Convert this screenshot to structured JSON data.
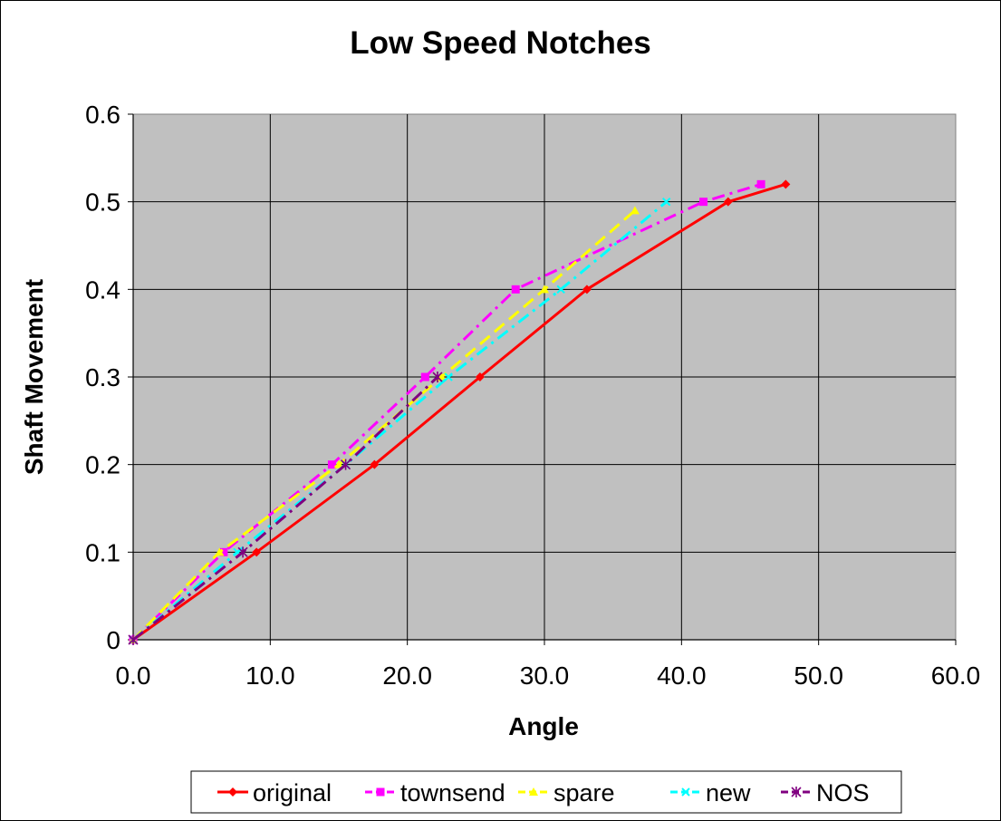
{
  "chart_data": {
    "type": "line",
    "title": "Low Speed Notches",
    "xlabel": "Angle",
    "ylabel": "Shaft Movement",
    "xlim": [
      0,
      60
    ],
    "ylim": [
      0,
      0.6
    ],
    "xticks": [
      0,
      10,
      20,
      30,
      40,
      50,
      60
    ],
    "xtick_labels": [
      "0.0",
      "10.0",
      "20.0",
      "30.0",
      "40.0",
      "50.0",
      "60.0"
    ],
    "yticks": [
      0,
      0.1,
      0.2,
      0.3,
      0.4,
      0.5,
      0.6
    ],
    "ytick_labels": [
      "0",
      "0.1",
      "0.2",
      "0.3",
      "0.4",
      "0.5",
      "0.6"
    ],
    "grid": true,
    "plot_background": "#c0c0c0",
    "legend_position": "bottom",
    "series": [
      {
        "name": "original",
        "color": "#ff0000",
        "marker": "diamond",
        "dash": "solid",
        "x": [
          0,
          9.0,
          17.6,
          25.3,
          33.1,
          43.4,
          47.6
        ],
        "y": [
          0,
          0.1,
          0.2,
          0.3,
          0.4,
          0.5,
          0.52
        ]
      },
      {
        "name": "townsend",
        "color": "#ff00ff",
        "marker": "square",
        "dash": "dashdot",
        "x": [
          0,
          6.6,
          14.5,
          21.3,
          27.9,
          41.6,
          45.8
        ],
        "y": [
          0,
          0.1,
          0.2,
          0.3,
          0.4,
          0.5,
          0.52
        ]
      },
      {
        "name": "spare",
        "color": "#ffff00",
        "marker": "triangle",
        "dash": "dash",
        "x": [
          0,
          6.3,
          15.0,
          22.5,
          30.0,
          36.6
        ],
        "y": [
          0,
          0.1,
          0.2,
          0.3,
          0.4,
          0.49
        ]
      },
      {
        "name": "new",
        "color": "#00ffff",
        "marker": "x",
        "dash": "dashdot",
        "x": [
          0,
          7.6,
          15.5,
          23.0,
          31.2,
          38.9
        ],
        "y": [
          0,
          0.1,
          0.2,
          0.3,
          0.4,
          0.5
        ]
      },
      {
        "name": "NOS",
        "color": "#800080",
        "marker": "star",
        "dash": "dashdot",
        "x": [
          0,
          8.0,
          15.5,
          22.2
        ],
        "y": [
          0,
          0.1,
          0.2,
          0.3
        ]
      }
    ]
  }
}
